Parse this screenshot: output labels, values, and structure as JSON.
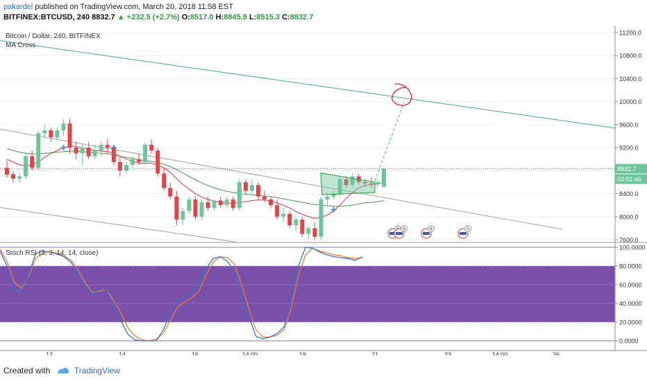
{
  "header": {
    "user": "pakardel",
    "published": "published on TradingView.com, March 20, 2018 11:58 EST",
    "symbol": "BITFINEX:BTCUSD, 240",
    "last": "8832.7",
    "change": "▲ +232.5 (+2.7%)",
    "o_label": "O:",
    "o_value": "8517.0",
    "h_label": "H:",
    "h_value": "8845.9",
    "l_label": "L:",
    "l_value": "8515.3",
    "c_label": "C:",
    "c_value": "8832.7"
  },
  "legend": {
    "title": "Bitcoin / Dollar, 240, BITFINEX",
    "study": "MA Cross",
    "rsi": "Stoch RSI (3, 3, 14, 14, close)"
  },
  "footer": {
    "created": "Created with",
    "brand": "TradingView"
  },
  "colors": {
    "up": "#6cc59b",
    "down": "#e2444c",
    "ma_fast": "#d9343c",
    "ma_slow": "#3c9c4e",
    "rsi_k": "#2f78d6",
    "rsi_d": "#ef7d2f",
    "rsi_band": "#6b3ca0",
    "trend_teal": "#4aa39b",
    "trend_gray": "#9aa0a6",
    "annotation": "#d9232d"
  },
  "chart_data": [
    {
      "type": "candlestick",
      "title": "Bitcoin / Dollar, 240, BITFINEX",
      "y_ticks": [
        11200.0,
        10800.0,
        10400.0,
        10000.0,
        9600.0,
        9200.0,
        8800.0,
        8400.0,
        8000.0,
        7600.0
      ],
      "ylim": [
        7550,
        11300
      ],
      "last_price_label": "8832.7",
      "countdown_label": "03:01:46",
      "x_ticks": [
        "12",
        "14",
        "16",
        "14:00",
        "19",
        "21",
        "23",
        "14:00",
        "26"
      ],
      "candles": [
        {
          "o": 8850,
          "h": 8980,
          "l": 8680,
          "c": 8730
        },
        {
          "o": 8740,
          "h": 8790,
          "l": 8600,
          "c": 8660
        },
        {
          "o": 8660,
          "h": 8760,
          "l": 8580,
          "c": 8700
        },
        {
          "o": 8700,
          "h": 9120,
          "l": 8650,
          "c": 9050
        },
        {
          "o": 9050,
          "h": 9150,
          "l": 8800,
          "c": 8850
        },
        {
          "o": 8850,
          "h": 9500,
          "l": 8800,
          "c": 9450
        },
        {
          "o": 9450,
          "h": 9600,
          "l": 9350,
          "c": 9500
        },
        {
          "o": 9500,
          "h": 9550,
          "l": 9300,
          "c": 9380
        },
        {
          "o": 9380,
          "h": 9550,
          "l": 9330,
          "c": 9500
        },
        {
          "o": 9500,
          "h": 9700,
          "l": 9400,
          "c": 9620
        },
        {
          "o": 9620,
          "h": 9700,
          "l": 9100,
          "c": 9200
        },
        {
          "o": 9200,
          "h": 9300,
          "l": 9000,
          "c": 9100
        },
        {
          "o": 9100,
          "h": 9250,
          "l": 8900,
          "c": 9200
        },
        {
          "o": 9200,
          "h": 9300,
          "l": 9000,
          "c": 9050
        },
        {
          "o": 9050,
          "h": 9250,
          "l": 9000,
          "c": 9150
        },
        {
          "o": 9150,
          "h": 9300,
          "l": 9050,
          "c": 9250
        },
        {
          "o": 9250,
          "h": 9350,
          "l": 9100,
          "c": 9200
        },
        {
          "o": 9200,
          "h": 9250,
          "l": 8900,
          "c": 8950
        },
        {
          "o": 8950,
          "h": 9050,
          "l": 8700,
          "c": 8800
        },
        {
          "o": 8800,
          "h": 8950,
          "l": 8750,
          "c": 8900
        },
        {
          "o": 8900,
          "h": 9050,
          "l": 8850,
          "c": 9000
        },
        {
          "o": 9000,
          "h": 9100,
          "l": 8900,
          "c": 8950
        },
        {
          "o": 8950,
          "h": 9300,
          "l": 8900,
          "c": 9250
        },
        {
          "o": 9250,
          "h": 9350,
          "l": 9100,
          "c": 9150
        },
        {
          "o": 9150,
          "h": 9200,
          "l": 8700,
          "c": 8750
        },
        {
          "o": 8750,
          "h": 8850,
          "l": 8450,
          "c": 8500
        },
        {
          "o": 8500,
          "h": 8600,
          "l": 8300,
          "c": 8350
        },
        {
          "o": 8350,
          "h": 8450,
          "l": 7850,
          "c": 7950
        },
        {
          "o": 7950,
          "h": 8150,
          "l": 7850,
          "c": 8100
        },
        {
          "o": 8100,
          "h": 8350,
          "l": 8050,
          "c": 8300
        },
        {
          "o": 8300,
          "h": 8350,
          "l": 7950,
          "c": 8000
        },
        {
          "o": 8000,
          "h": 8300,
          "l": 7950,
          "c": 8250
        },
        {
          "o": 8250,
          "h": 8350,
          "l": 8100,
          "c": 8150
        },
        {
          "o": 8150,
          "h": 8300,
          "l": 8100,
          "c": 8280
        },
        {
          "o": 8280,
          "h": 8350,
          "l": 8150,
          "c": 8200
        },
        {
          "o": 8200,
          "h": 8350,
          "l": 8150,
          "c": 8300
        },
        {
          "o": 8300,
          "h": 8350,
          "l": 8100,
          "c": 8150
        },
        {
          "o": 8150,
          "h": 8650,
          "l": 8100,
          "c": 8600
        },
        {
          "o": 8600,
          "h": 8650,
          "l": 8400,
          "c": 8450
        },
        {
          "o": 8450,
          "h": 8650,
          "l": 8400,
          "c": 8550
        },
        {
          "o": 8550,
          "h": 8600,
          "l": 8300,
          "c": 8350
        },
        {
          "o": 8350,
          "h": 8450,
          "l": 8250,
          "c": 8300
        },
        {
          "o": 8300,
          "h": 8350,
          "l": 8150,
          "c": 8200
        },
        {
          "o": 8200,
          "h": 8300,
          "l": 7950,
          "c": 8000
        },
        {
          "o": 8000,
          "h": 8150,
          "l": 7900,
          "c": 8050
        },
        {
          "o": 8050,
          "h": 8100,
          "l": 7800,
          "c": 7850
        },
        {
          "o": 7850,
          "h": 8000,
          "l": 7750,
          "c": 7950
        },
        {
          "o": 7950,
          "h": 8000,
          "l": 7650,
          "c": 7700
        },
        {
          "o": 7700,
          "h": 7850,
          "l": 7600,
          "c": 7800
        },
        {
          "o": 7800,
          "h": 7900,
          "l": 7600,
          "c": 7650
        },
        {
          "o": 7650,
          "h": 8350,
          "l": 7600,
          "c": 8300
        },
        {
          "o": 8300,
          "h": 8400,
          "l": 8200,
          "c": 8350
        },
        {
          "o": 8350,
          "h": 8450,
          "l": 8300,
          "c": 8400
        },
        {
          "o": 8400,
          "h": 8700,
          "l": 8350,
          "c": 8650
        },
        {
          "o": 8650,
          "h": 8700,
          "l": 8500,
          "c": 8550
        },
        {
          "o": 8550,
          "h": 8750,
          "l": 8500,
          "c": 8700
        },
        {
          "o": 8700,
          "h": 8750,
          "l": 8550,
          "c": 8600
        },
        {
          "o": 8600,
          "h": 8650,
          "l": 8520,
          "c": 8580
        },
        {
          "o": 8580,
          "h": 8680,
          "l": 8500,
          "c": 8560
        },
        {
          "o": 8560,
          "h": 8650,
          "l": 8500,
          "c": 8600
        },
        {
          "o": 8517,
          "h": 8846,
          "l": 8515,
          "c": 8833
        }
      ],
      "ma_fast": [
        9000,
        8950,
        8900,
        8880,
        8900,
        8950,
        9030,
        9100,
        9150,
        9200,
        9230,
        9220,
        9190,
        9170,
        9150,
        9140,
        9130,
        9100,
        9050,
        9000,
        8960,
        8930,
        8930,
        8930,
        8900,
        8850,
        8770,
        8660,
        8560,
        8480,
        8400,
        8340,
        8300,
        8270,
        8250,
        8240,
        8230,
        8250,
        8260,
        8280,
        8290,
        8290,
        8270,
        8240,
        8200,
        8150,
        8090,
        8040,
        8000,
        7970,
        7990,
        8030,
        8100,
        8200,
        8320,
        8420,
        8500,
        8540,
        8560,
        8570,
        8600
      ],
      "ma_slow": [
        9180,
        9150,
        9120,
        9100,
        9090,
        9090,
        9100,
        9110,
        9120,
        9130,
        9140,
        9140,
        9130,
        9120,
        9110,
        9100,
        9090,
        9070,
        9050,
        9030,
        9010,
        8990,
        8970,
        8960,
        8940,
        8910,
        8870,
        8820,
        8760,
        8700,
        8640,
        8590,
        8540,
        8500,
        8470,
        8440,
        8420,
        8400,
        8390,
        8380,
        8370,
        8360,
        8350,
        8330,
        8310,
        8290,
        8270,
        8250,
        8230,
        8210,
        8200,
        8190,
        8180,
        8180,
        8190,
        8200,
        8220,
        8240,
        8250,
        8260,
        8280
      ],
      "annotation_label": ""
    },
    {
      "type": "line",
      "title": "Stoch RSI (3, 3, 14, 14, close)",
      "y_ticks": [
        100.0,
        80.0,
        60.0,
        40.0,
        20.0,
        0.0
      ],
      "ylim": [
        -5,
        103
      ],
      "band": [
        20,
        80
      ],
      "series": [
        {
          "name": "K",
          "values": [
            96,
            80,
            55,
            52,
            70,
            93,
            96,
            95,
            93,
            90,
            84,
            72,
            58,
            50,
            55,
            55,
            38,
            22,
            7,
            1,
            0,
            0,
            0,
            12,
            30,
            43,
            45,
            51,
            60,
            77,
            88,
            90,
            85,
            75,
            52,
            27,
            5,
            2,
            4,
            8,
            15,
            44,
            80,
            100,
            99,
            95,
            92,
            90,
            89,
            88,
            86,
            90
          ]
        },
        {
          "name": "D",
          "values": [
            98,
            85,
            63,
            56,
            68,
            88,
            94,
            95,
            94,
            91,
            86,
            76,
            62,
            52,
            53,
            55,
            43,
            30,
            14,
            5,
            1,
            0,
            2,
            8,
            22,
            36,
            42,
            46,
            53,
            70,
            84,
            90,
            89,
            82,
            60,
            35,
            12,
            4,
            4,
            6,
            12,
            35,
            70,
            92,
            99,
            96,
            94,
            92,
            91,
            89,
            88,
            89
          ]
        }
      ]
    }
  ]
}
